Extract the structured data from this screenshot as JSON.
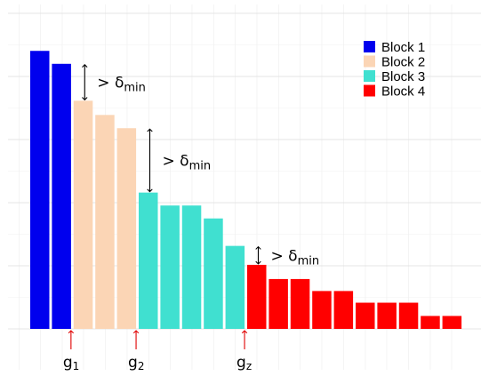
{
  "chart_data": {
    "type": "bar",
    "title": "",
    "xlabel": "",
    "ylabel": "",
    "ylim": [
      0,
      100
    ],
    "grid": true,
    "legend_position": "top-right",
    "values": [
      88.1,
      84.0,
      72.3,
      67.8,
      63.6,
      43.2,
      39.1,
      39.1,
      35.0,
      26.3,
      20.3,
      15.8,
      15.8,
      12.0,
      12.0,
      8.3,
      8.3,
      8.3,
      4.1,
      4.1
    ],
    "block_of_bar": [
      1,
      1,
      2,
      2,
      2,
      3,
      3,
      3,
      3,
      3,
      4,
      4,
      4,
      4,
      4,
      4,
      4,
      4,
      4,
      4
    ],
    "blocks": [
      {
        "name": "Block 1",
        "color": "#0000ee"
      },
      {
        "name": "Block 2",
        "color": "#fbd5b5"
      },
      {
        "name": "Block 3",
        "color": "#40e0d0"
      },
      {
        "name": "Block 4",
        "color": "#ff0000"
      }
    ],
    "gaps": [
      {
        "label": "> δ",
        "sub": "min",
        "from_bar": 1,
        "to_bar": 2
      },
      {
        "label": "> δ",
        "sub": "min",
        "from_bar": 4,
        "to_bar": 5
      },
      {
        "label": "> δ",
        "sub": "min",
        "from_bar": 9,
        "to_bar": 10
      }
    ],
    "cut_markers": [
      {
        "label": "g",
        "sub": "1",
        "at_boundary": 2
      },
      {
        "label": "g",
        "sub": "2",
        "at_boundary": 5
      },
      {
        "label": "g",
        "sub": "z",
        "at_boundary": 10
      }
    ],
    "arrow_color": "#e00000"
  }
}
